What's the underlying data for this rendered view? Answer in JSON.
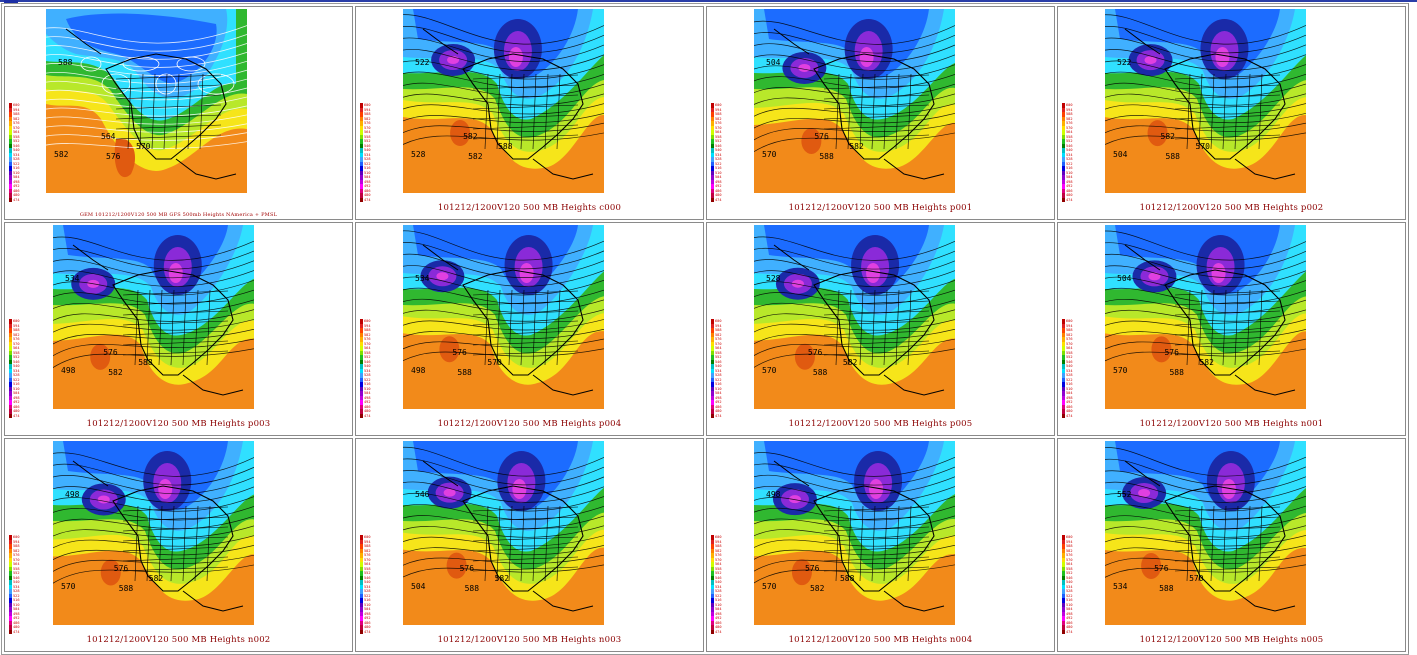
{
  "panels": [
    {
      "id": "gfs",
      "caption": "GEM 101212/1200V120  500 MB GFS 500mb Heights NAmerica + PMSL",
      "style": "analysis",
      "lbl": [
        "582",
        "588",
        "576",
        "570",
        "564"
      ]
    },
    {
      "id": "c000",
      "caption": "101212/1200V120 500 MB Heights c000",
      "style": "ens",
      "lbl": [
        "528",
        "522",
        "582",
        "588",
        "582"
      ]
    },
    {
      "id": "p001",
      "caption": "101212/1200V120 500 MB Heights p001",
      "style": "ens",
      "lbl": [
        "570",
        "504",
        "588",
        "582",
        "576"
      ]
    },
    {
      "id": "p002",
      "caption": "101212/1200V120 500 MB Heights p002",
      "style": "ens",
      "lbl": [
        "504",
        "522",
        "588",
        "570",
        "582"
      ]
    },
    {
      "id": "p003",
      "caption": "101212/1200V120 500 MB Heights p003",
      "style": "ens",
      "lbl": [
        "498",
        "534",
        "582",
        "588",
        "576"
      ]
    },
    {
      "id": "p004",
      "caption": "101212/1200V120 500 MB Heights p004",
      "style": "ens",
      "lbl": [
        "498",
        "534",
        "588",
        "570",
        "576"
      ]
    },
    {
      "id": "p005",
      "caption": "101212/1200V120 500 MB Heights p005",
      "style": "ens",
      "lbl": [
        "570",
        "528",
        "588",
        "582",
        "576"
      ]
    },
    {
      "id": "n001",
      "caption": "101212/1200V120 500 MB Heights n001",
      "style": "ens",
      "lbl": [
        "570",
        "504",
        "588",
        "582",
        "576"
      ]
    },
    {
      "id": "n002",
      "caption": "101212/1200V120 500 MB Heights n002",
      "style": "ens",
      "lbl": [
        "570",
        "498",
        "588",
        "582",
        "576"
      ]
    },
    {
      "id": "n003",
      "caption": "101212/1200V120 500 MB Heights n003",
      "style": "ens",
      "lbl": [
        "504",
        "546",
        "588",
        "582",
        "576"
      ]
    },
    {
      "id": "n004",
      "caption": "101212/1200V120 500 MB Heights n004",
      "style": "ens",
      "lbl": [
        "570",
        "498",
        "582",
        "588",
        "576"
      ]
    },
    {
      "id": "n005",
      "caption": "101212/1200V120 500 MB Heights n005",
      "style": "ens",
      "lbl": [
        "534",
        "552",
        "588",
        "570",
        "576"
      ]
    }
  ],
  "legend_labels": [
    "600",
    "594",
    "588",
    "582",
    "576",
    "570",
    "564",
    "558",
    "552",
    "546",
    "540",
    "534",
    "528",
    "522",
    "516",
    "510",
    "504",
    "498",
    "492",
    "486",
    "480",
    "474"
  ],
  "legend_colors": [
    "#c00000",
    "#e02020",
    "#ff4000",
    "#ff8000",
    "#ffb000",
    "#ffe000",
    "#d0ff00",
    "#80e000",
    "#20c020",
    "#008000",
    "#00c0c0",
    "#00e0ff",
    "#40a0ff",
    "#2060ff",
    "#0000e0",
    "#6000c0",
    "#9000d0",
    "#c000e0",
    "#ff00ff",
    "#e00080",
    "#c00040",
    "#900000"
  ],
  "map_colors": {
    "orange": "#f28a1a",
    "dark_orange": "#e05a10",
    "yellow": "#f6e51a",
    "lime": "#b8e82a",
    "green": "#30b830",
    "dark_green": "#108a10",
    "cyan": "#30e0ff",
    "light_blue": "#40b0ff",
    "blue": "#1c6cff",
    "navy": "#1a2aa8",
    "purple": "#8a2ad8",
    "magenta": "#e040e0"
  }
}
